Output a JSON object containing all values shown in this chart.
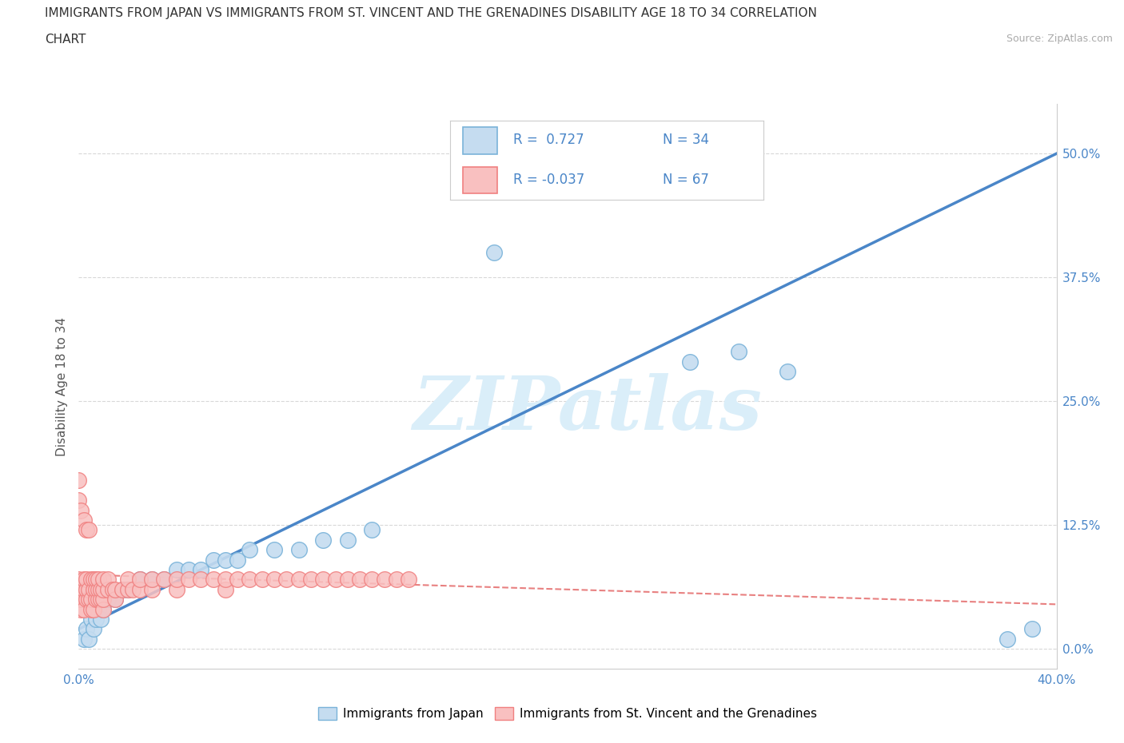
{
  "title_line1": "IMMIGRANTS FROM JAPAN VS IMMIGRANTS FROM ST. VINCENT AND THE GRENADINES DISABILITY AGE 18 TO 34 CORRELATION",
  "title_line2": "CHART",
  "source_text": "Source: ZipAtlas.com",
  "ylabel": "Disability Age 18 to 34",
  "xlim": [
    0.0,
    0.4
  ],
  "ylim": [
    -0.02,
    0.55
  ],
  "ytick_positions": [
    0.0,
    0.125,
    0.25,
    0.375,
    0.5
  ],
  "yticklabels_right": [
    "0.0%",
    "12.5%",
    "25.0%",
    "37.5%",
    "50.0%"
  ],
  "japan_color": "#7ab3d9",
  "japan_color_light": "#c5dcf0",
  "svg_color": "#f08080",
  "svg_color_light": "#f9c0c0",
  "R_japan": 0.727,
  "N_japan": 34,
  "R_svg": -0.037,
  "N_svg": 67,
  "watermark_color": "#daeef9",
  "background_color": "#ffffff",
  "grid_color": "#d8d8d8",
  "japan_x": [
    0.002,
    0.003,
    0.004,
    0.005,
    0.006,
    0.007,
    0.008,
    0.009,
    0.01,
    0.012,
    0.015,
    0.018,
    0.02,
    0.025,
    0.03,
    0.035,
    0.04,
    0.045,
    0.05,
    0.055,
    0.06,
    0.065,
    0.07,
    0.08,
    0.09,
    0.1,
    0.11,
    0.12,
    0.17,
    0.25,
    0.27,
    0.29,
    0.38,
    0.39
  ],
  "japan_y": [
    0.01,
    0.02,
    0.01,
    0.03,
    0.02,
    0.03,
    0.04,
    0.03,
    0.04,
    0.05,
    0.05,
    0.06,
    0.06,
    0.07,
    0.07,
    0.07,
    0.08,
    0.08,
    0.08,
    0.09,
    0.09,
    0.09,
    0.1,
    0.1,
    0.1,
    0.11,
    0.11,
    0.12,
    0.4,
    0.29,
    0.3,
    0.28,
    0.01,
    0.02
  ],
  "svg_x": [
    0.0,
    0.0,
    0.0,
    0.001,
    0.001,
    0.002,
    0.002,
    0.002,
    0.003,
    0.003,
    0.003,
    0.004,
    0.004,
    0.005,
    0.005,
    0.005,
    0.006,
    0.006,
    0.006,
    0.007,
    0.007,
    0.007,
    0.008,
    0.008,
    0.008,
    0.009,
    0.009,
    0.01,
    0.01,
    0.01,
    0.01,
    0.012,
    0.012,
    0.014,
    0.015,
    0.015,
    0.018,
    0.02,
    0.02,
    0.022,
    0.025,
    0.025,
    0.03,
    0.03,
    0.035,
    0.04,
    0.04,
    0.045,
    0.05,
    0.055,
    0.06,
    0.06,
    0.065,
    0.07,
    0.075,
    0.08,
    0.085,
    0.09,
    0.095,
    0.1,
    0.105,
    0.11,
    0.115,
    0.12,
    0.125,
    0.13,
    0.135
  ],
  "svg_y": [
    0.05,
    0.06,
    0.07,
    0.04,
    0.05,
    0.04,
    0.06,
    0.07,
    0.05,
    0.06,
    0.07,
    0.05,
    0.06,
    0.04,
    0.05,
    0.07,
    0.04,
    0.06,
    0.07,
    0.05,
    0.06,
    0.07,
    0.05,
    0.06,
    0.07,
    0.05,
    0.06,
    0.04,
    0.05,
    0.06,
    0.07,
    0.06,
    0.07,
    0.06,
    0.05,
    0.06,
    0.06,
    0.06,
    0.07,
    0.06,
    0.06,
    0.07,
    0.06,
    0.07,
    0.07,
    0.06,
    0.07,
    0.07,
    0.07,
    0.07,
    0.06,
    0.07,
    0.07,
    0.07,
    0.07,
    0.07,
    0.07,
    0.07,
    0.07,
    0.07,
    0.07,
    0.07,
    0.07,
    0.07,
    0.07,
    0.07,
    0.07
  ],
  "svg_outlier_x": [
    0.0,
    0.0,
    0.001,
    0.002,
    0.003,
    0.004
  ],
  "svg_outlier_y": [
    0.17,
    0.15,
    0.14,
    0.13,
    0.12,
    0.12
  ],
  "japan_trend_x0": 0.0,
  "japan_trend_y0": 0.02,
  "japan_trend_x1": 0.4,
  "japan_trend_y1": 0.5,
  "svg_trend_x0": 0.0,
  "svg_trend_y0": 0.075,
  "svg_trend_x1": 0.4,
  "svg_trend_y1": 0.045,
  "legend_R_japan_text": "R =  0.727",
  "legend_N_japan_text": "N = 34",
  "legend_R_svg_text": "R = -0.037",
  "legend_N_svg_text": "N = 67"
}
